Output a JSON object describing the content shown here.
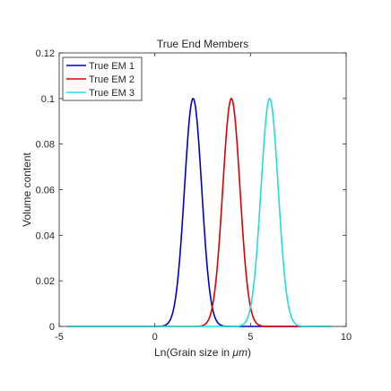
{
  "chart_data": {
    "type": "line",
    "title": "True End Members",
    "xlabel_prefix": "Ln(Grain size in ",
    "xlabel_unit": "μm",
    "xlabel_suffix": ")",
    "ylabel": "Volume content",
    "xlim": [
      -5,
      10
    ],
    "ylim": [
      0,
      0.12
    ],
    "xticks": [
      -5,
      0,
      5,
      10
    ],
    "xtick_labels": [
      "-5",
      "0",
      "5",
      "10"
    ],
    "yticks": [
      0,
      0.02,
      0.04,
      0.06,
      0.08,
      0.1,
      0.12
    ],
    "ytick_labels": [
      "0",
      "0.02",
      "0.04",
      "0.06",
      "0.08",
      "0.1",
      "0.12"
    ],
    "grid": false,
    "legend_position": "top-left",
    "x_range": [
      -4.6,
      9.2
    ],
    "series": [
      {
        "name": "True EM 1",
        "color": "#0000cc",
        "peak_x": 2.0,
        "peak_y": 0.1,
        "sigma": 0.45
      },
      {
        "name": "True EM 2",
        "color": "#dd0000",
        "peak_x": 4.0,
        "peak_y": 0.1,
        "sigma": 0.45
      },
      {
        "name": "True EM 3",
        "color": "#22dddd",
        "peak_x": 6.0,
        "peak_y": 0.1,
        "sigma": 0.45
      }
    ]
  }
}
